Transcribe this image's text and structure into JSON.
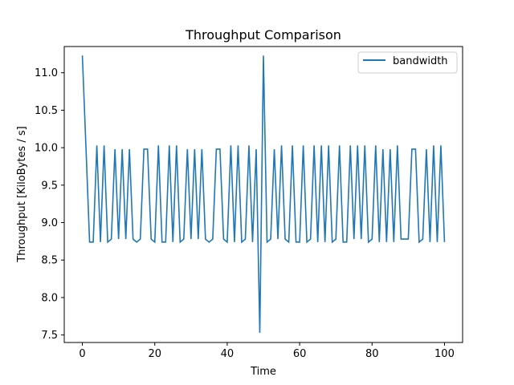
{
  "chart_data": {
    "type": "line",
    "title": "Throughput Comparison",
    "xlabel": "Time",
    "ylabel": "Throughput [KiloBytes / s]",
    "xlim": [
      -5,
      105
    ],
    "ylim": [
      7.4,
      11.35
    ],
    "xticks": [
      0,
      20,
      40,
      60,
      80,
      100
    ],
    "xtick_labels": [
      "0",
      "20",
      "40",
      "60",
      "80",
      "100"
    ],
    "yticks": [
      7.5,
      8.0,
      8.5,
      9.0,
      9.5,
      10.0,
      10.5,
      11.0
    ],
    "ytick_labels": [
      "7.5",
      "8.0",
      "8.5",
      "9.0",
      "9.5",
      "10.0",
      "10.5",
      "11.0"
    ],
    "grid": false,
    "legend_position": "top-right",
    "series": [
      {
        "name": "bandwidth",
        "color": "#1f77b4",
        "x": [
          0,
          1,
          2,
          3,
          4,
          5,
          6,
          7,
          8,
          9,
          10,
          11,
          12,
          13,
          14,
          15,
          16,
          17,
          18,
          19,
          20,
          21,
          22,
          23,
          24,
          25,
          26,
          27,
          28,
          29,
          30,
          31,
          32,
          33,
          34,
          35,
          36,
          37,
          38,
          39,
          40,
          41,
          42,
          43,
          44,
          45,
          46,
          47,
          48,
          49,
          50,
          51,
          52,
          53,
          54,
          55,
          56,
          57,
          58,
          59,
          60,
          61,
          62,
          63,
          64,
          65,
          66,
          67,
          68,
          69,
          70,
          71,
          72,
          73,
          74,
          75,
          76,
          77,
          78,
          79,
          80,
          81,
          82,
          83,
          84,
          85,
          86,
          87,
          88,
          89,
          90,
          91,
          92,
          93,
          94,
          95,
          96,
          97,
          98,
          99,
          100
        ],
        "y": [
          11.23,
          10.0,
          8.74,
          8.74,
          10.03,
          8.74,
          10.03,
          8.74,
          8.78,
          9.98,
          8.78,
          9.98,
          8.78,
          9.98,
          8.78,
          8.74,
          8.78,
          9.98,
          9.98,
          8.78,
          8.74,
          10.03,
          8.74,
          8.74,
          10.03,
          8.74,
          10.03,
          8.74,
          8.78,
          9.98,
          8.78,
          9.98,
          8.78,
          9.98,
          8.78,
          8.74,
          8.78,
          9.98,
          9.98,
          8.78,
          8.74,
          10.03,
          8.74,
          10.03,
          8.74,
          8.78,
          10.03,
          8.74,
          9.98,
          7.53,
          11.23,
          8.74,
          8.78,
          9.98,
          8.78,
          10.03,
          8.78,
          8.74,
          10.03,
          8.74,
          8.74,
          10.03,
          8.74,
          8.78,
          10.03,
          8.74,
          10.03,
          8.74,
          10.03,
          8.74,
          8.78,
          10.03,
          8.74,
          8.74,
          10.03,
          8.78,
          10.03,
          8.78,
          10.03,
          8.74,
          8.78,
          10.03,
          8.74,
          9.98,
          8.74,
          9.98,
          8.74,
          10.03,
          8.78,
          8.78,
          8.78,
          9.98,
          9.98,
          8.74,
          8.78,
          9.98,
          8.74,
          10.03,
          8.74,
          10.03,
          8.74
        ]
      }
    ]
  }
}
